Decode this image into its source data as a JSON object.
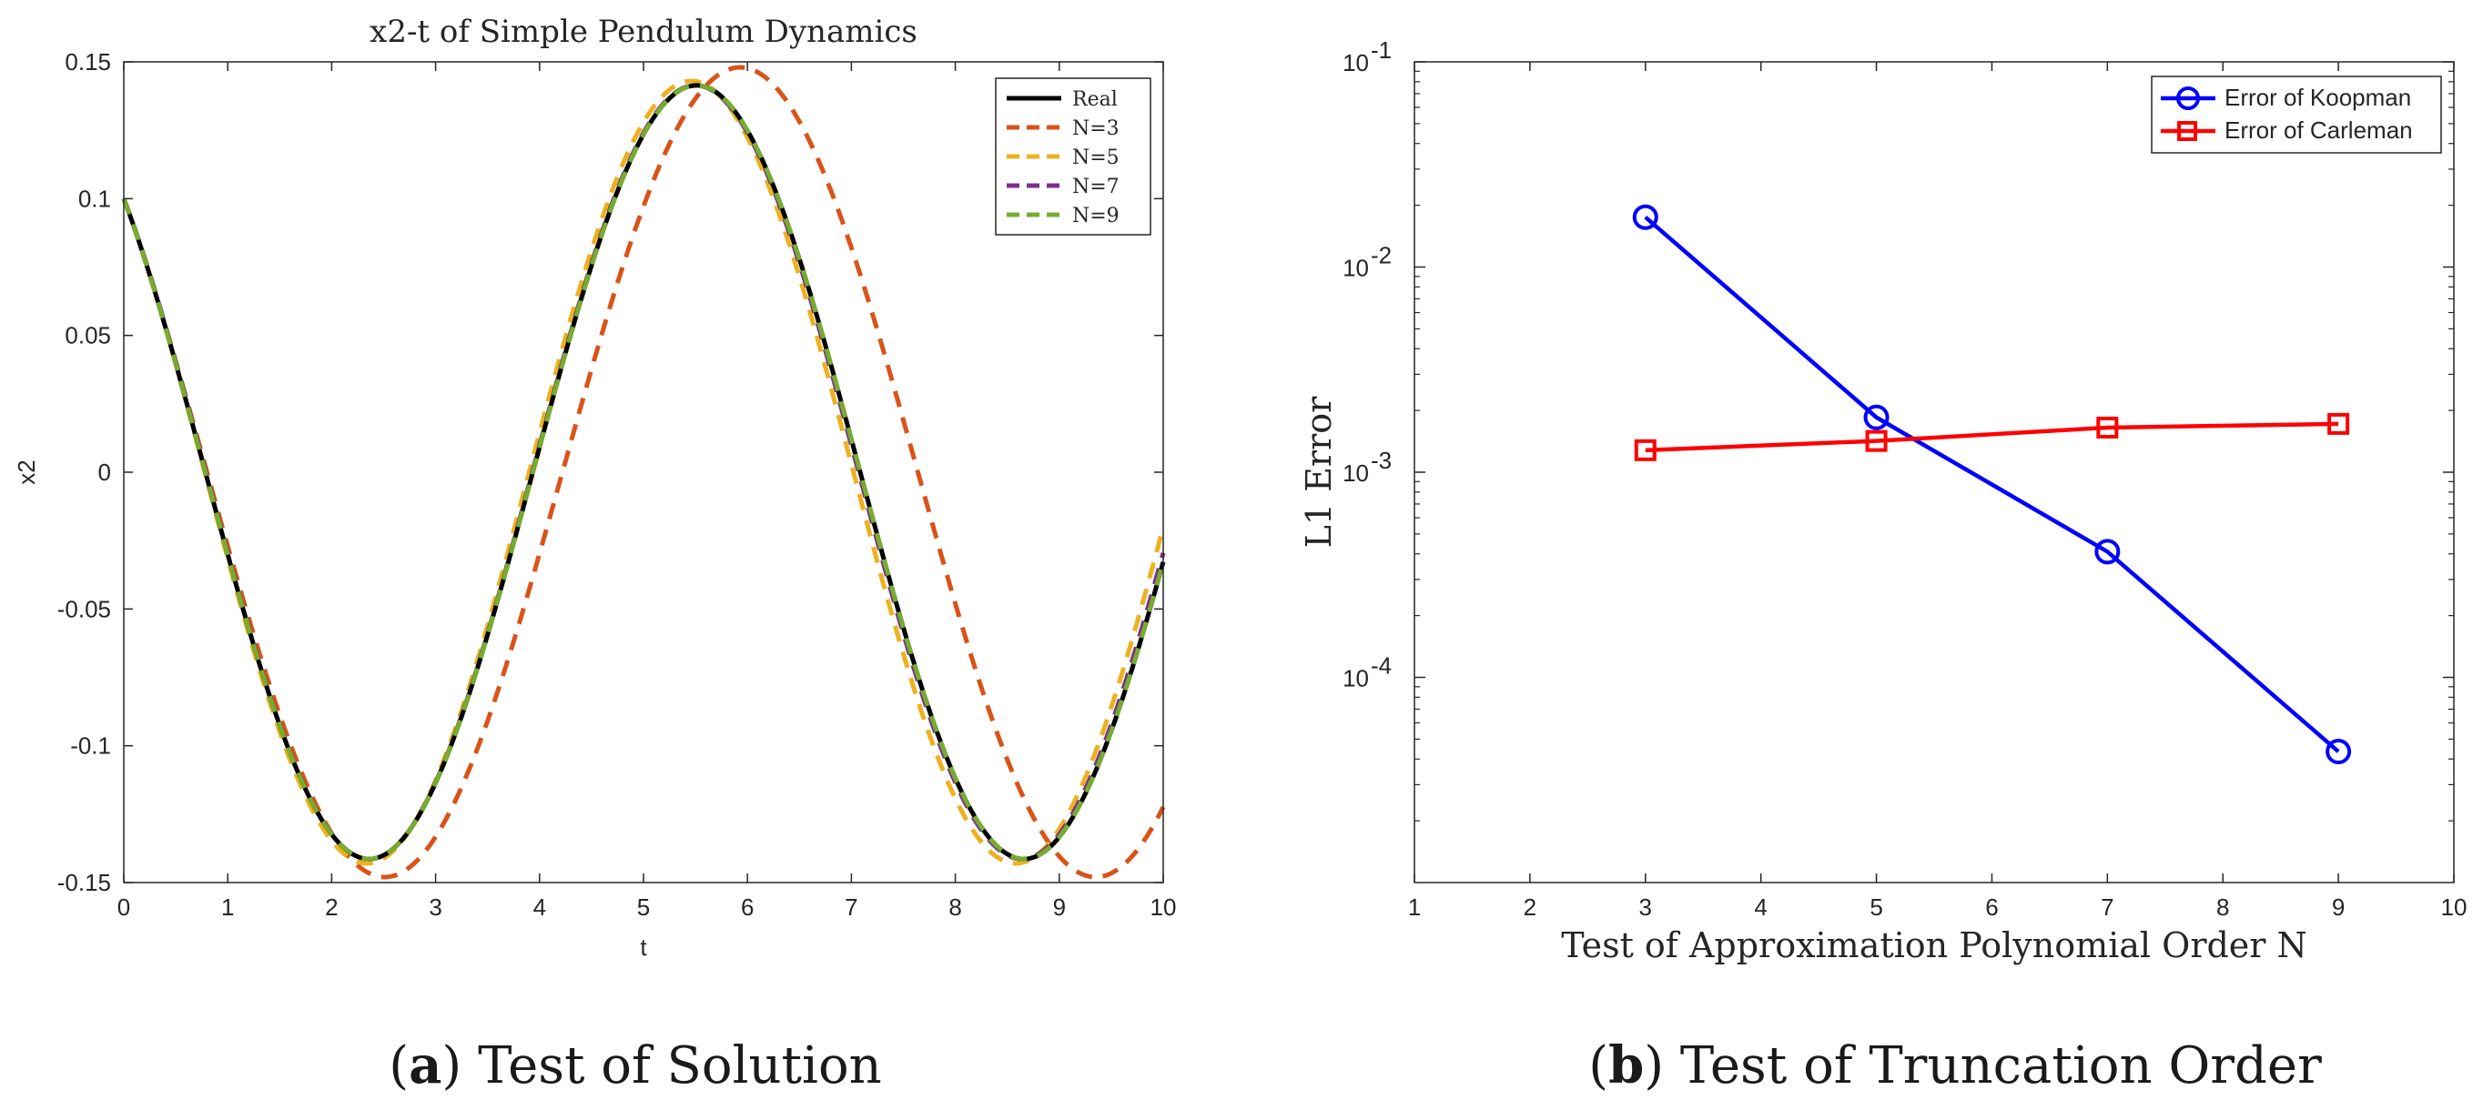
{
  "colors": {
    "real": "#000000",
    "n3": "#d95319",
    "n5": "#edb120",
    "n7": "#7e2f8e",
    "n9": "#77ac30",
    "koopman": "#0000ff",
    "carleman": "#ff0000",
    "axis": "#262626"
  },
  "captions": {
    "a_label": "a",
    "a_text": "Test of Solution",
    "b_label": "b",
    "b_text": "Test of Truncation Order"
  },
  "chart_data": [
    {
      "id": "a",
      "type": "line",
      "title": "x2-t of Simple Pendulum Dynamics",
      "xlabel": "t",
      "ylabel": "x2",
      "xlim": [
        0,
        10
      ],
      "ylim": [
        -0.15,
        0.15
      ],
      "x_ticks": [
        0,
        1,
        2,
        3,
        4,
        5,
        6,
        7,
        8,
        9,
        10
      ],
      "x_tick_labels": [
        "0",
        "1",
        "2",
        "3",
        "4",
        "5",
        "6",
        "7",
        "8",
        "9",
        "10"
      ],
      "y_ticks": [
        -0.15,
        -0.1,
        -0.05,
        0,
        0.05,
        0.1,
        0.15
      ],
      "y_tick_labels": [
        "-0.15",
        "-0.1",
        "-0.05",
        "0",
        "0.05",
        "0.1",
        "0.15"
      ],
      "legend_position": "top-right",
      "series": [
        {
          "name": "Real",
          "style": "solid",
          "color_key": "real",
          "amplitude": 0.1414,
          "period": 6.3,
          "peak_time": 5.51
        },
        {
          "name": "N=3",
          "style": "dashed",
          "color_key": "n3",
          "amplitude": 0.148,
          "period": 6.84,
          "peak_time": 5.93
        },
        {
          "name": "N=5",
          "style": "dashed",
          "color_key": "n5",
          "amplitude": 0.143,
          "period": 6.24,
          "peak_time": 5.46
        },
        {
          "name": "N=7",
          "style": "dashed",
          "color_key": "n7",
          "amplitude": 0.1414,
          "period": 6.28,
          "peak_time": 5.5
        },
        {
          "name": "N=9",
          "style": "dashed",
          "color_key": "n9",
          "amplitude": 0.1414,
          "period": 6.3,
          "peak_time": 5.51
        }
      ],
      "initial_value": 0.1
    },
    {
      "id": "b",
      "type": "line",
      "title": "",
      "xlabel": "Test of Approximation Polynomial Order N",
      "ylabel": "L1 Error",
      "xlim": [
        1,
        10
      ],
      "ylim_log10": [
        -5,
        -1
      ],
      "y_scale": "log",
      "x_ticks": [
        1,
        2,
        3,
        4,
        5,
        6,
        7,
        8,
        9,
        10
      ],
      "x_tick_labels": [
        "1",
        "2",
        "3",
        "4",
        "5",
        "6",
        "7",
        "8",
        "9",
        "10"
      ],
      "y_ticks_exp": [
        -4,
        -3,
        -2,
        -1
      ],
      "y_tick_base": "10",
      "y_tick_exps": [
        "-4",
        "-3",
        "-2",
        "-1"
      ],
      "legend_position": "top-right",
      "categories": [
        3,
        5,
        7,
        9
      ],
      "series": [
        {
          "name": "Error of Koopman",
          "marker": "circle",
          "color_key": "koopman",
          "values": [
            0.0175,
            0.00185,
            0.00041,
            4.35e-05
          ]
        },
        {
          "name": "Error of Carleman",
          "marker": "square",
          "color_key": "carleman",
          "values": [
            0.00128,
            0.00142,
            0.00165,
            0.00172
          ]
        }
      ]
    }
  ]
}
